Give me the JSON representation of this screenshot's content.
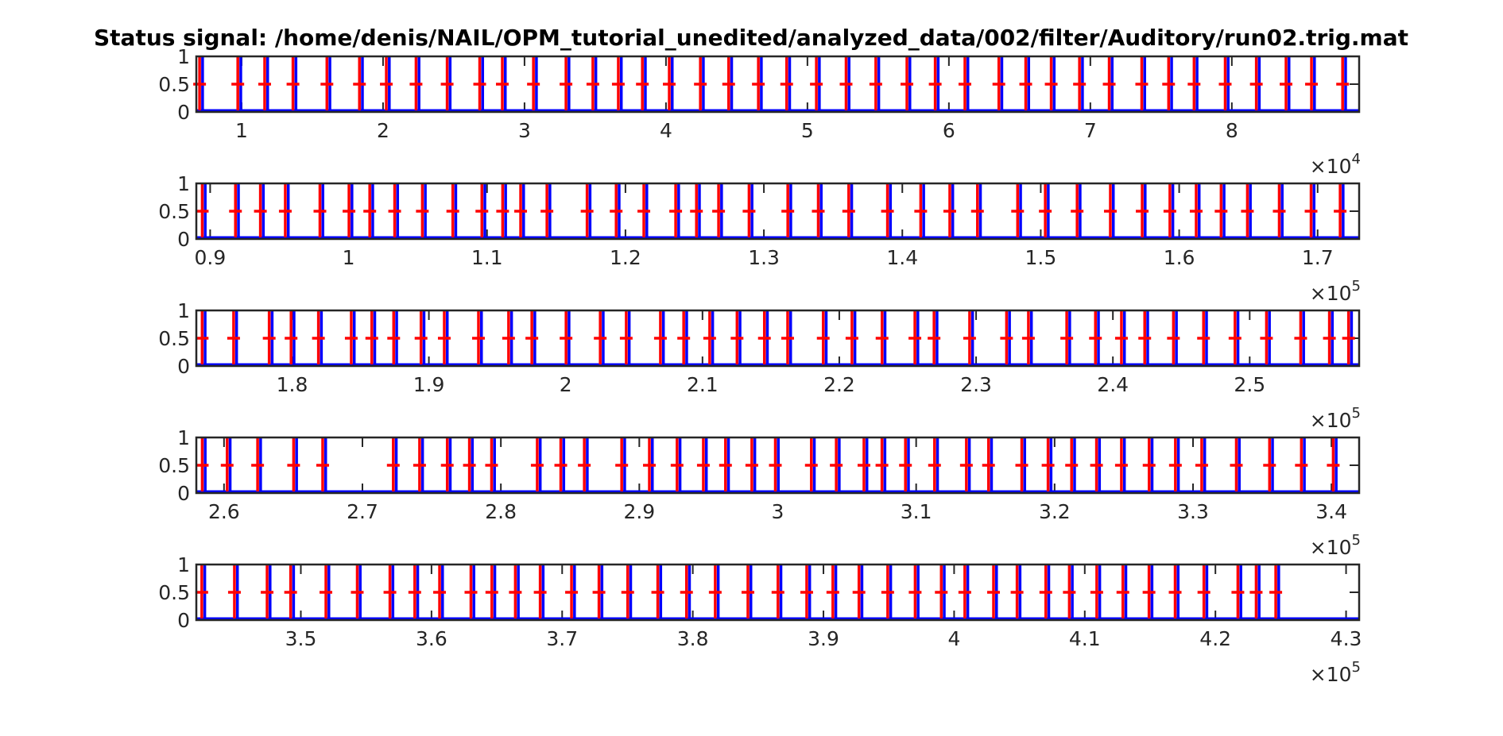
{
  "title": "Status signal: /home/denis/NAIL/OPM_tutorial_unedited/analyzed_data/002/filter/Auditory/run02.trig.mat",
  "chart_data": {
    "type": "line",
    "title": "Status signal: /home/denis/NAIL/OPM_tutorial_unedited/analyzed_data/002/filter/Auditory/run02.trig.mat",
    "xlabel": "",
    "ylabel": "",
    "grid": false,
    "colors": {
      "signal": "#0000ff",
      "trigger_markers": "#ff0000",
      "axes": "#262626"
    },
    "series": [
      {
        "name": "",
        "color": "#0000ff",
        "description_values": "status pulses 0 to 1"
      },
      {
        "name": "",
        "color": "#ff0000",
        "marker": "+"
      }
    ],
    "panels": [
      {
        "xlim": [
          6800,
          89000
        ],
        "ylim": [
          0,
          1
        ],
        "exponent_label": "×10",
        "exponent": "4",
        "yticks": [
          0,
          0.5,
          1
        ],
        "ytick_labels": [
          "0",
          "0.5",
          "1"
        ],
        "xticks": [
          10000,
          20000,
          30000,
          40000,
          50000,
          60000,
          70000,
          80000
        ],
        "xtick_labels": [
          "1",
          "2",
          "3",
          "4",
          "5",
          "6",
          "7",
          "8"
        ],
        "events": [
          7200,
          9900,
          11800,
          13800,
          16200,
          18500,
          20400,
          22500,
          24700,
          27000,
          28600,
          30800,
          33100,
          35000,
          36800,
          38500,
          40400,
          42600,
          44600,
          46700,
          48700,
          50800,
          52900,
          55000,
          57200,
          59200,
          61300,
          63700,
          65600,
          67400,
          69400,
          71500,
          73800,
          75700,
          77500,
          79700,
          81900,
          84000,
          85800,
          88000
        ]
      },
      {
        "xlim": [
          89000,
          173000
        ],
        "ylim": [
          0,
          1
        ],
        "exponent_label": "×10",
        "exponent": "5",
        "yticks": [
          0,
          0.5,
          1
        ],
        "ytick_labels": [
          "0",
          "0.5",
          "1"
        ],
        "xticks": [
          90000,
          100000,
          110000,
          120000,
          130000,
          140000,
          150000,
          160000,
          170000
        ],
        "xtick_labels": [
          "0.9",
          "1",
          "1.1",
          "1.2",
          "1.3",
          "1.4",
          "1.5",
          "1.6",
          "1.7"
        ],
        "events": [
          89600,
          92000,
          93800,
          95600,
          98100,
          100200,
          101700,
          103500,
          105500,
          107700,
          109800,
          111300,
          112600,
          114500,
          117400,
          119500,
          121500,
          123800,
          125300,
          126900,
          129100,
          131900,
          134100,
          136300,
          139100,
          141500,
          143600,
          145600,
          148500,
          150500,
          152800,
          155200,
          157500,
          159500,
          161400,
          163200,
          165100,
          167400,
          169700,
          171800
        ]
      },
      {
        "xlim": [
          173000,
          258000
        ],
        "ylim": [
          0,
          1
        ],
        "exponent_label": "×10",
        "exponent": "5",
        "yticks": [
          0,
          0.5,
          1
        ],
        "ytick_labels": [
          "0",
          "0.5",
          "1"
        ],
        "xticks": [
          180000,
          190000,
          200000,
          210000,
          220000,
          230000,
          240000,
          250000
        ],
        "xtick_labels": [
          "1.8",
          "1.9",
          "2",
          "2.1",
          "2.2",
          "2.3",
          "2.4",
          "2.5"
        ],
        "events": [
          173600,
          175900,
          178500,
          180100,
          182100,
          184500,
          186000,
          187600,
          189600,
          191300,
          193800,
          196000,
          197700,
          200200,
          202700,
          204600,
          207100,
          208800,
          210700,
          212700,
          214700,
          216400,
          219000,
          221100,
          223300,
          225700,
          227100,
          229700,
          232400,
          234000,
          236800,
          238900,
          240800,
          242500,
          244600,
          246800,
          249100,
          251400,
          253900,
          256000,
          257400
        ]
      },
      {
        "xlim": [
          258000,
          342000
        ],
        "ylim": [
          0,
          1
        ],
        "exponent_label": "×10",
        "exponent": "5",
        "yticks": [
          0,
          0.5,
          1
        ],
        "ytick_labels": [
          "0",
          "0.5",
          "1"
        ],
        "xticks": [
          260000,
          270000,
          280000,
          290000,
          300000,
          310000,
          320000,
          330000,
          340000
        ],
        "xtick_labels": [
          "2.6",
          "2.7",
          "2.8",
          "2.9",
          "3",
          "3.1",
          "3.2",
          "3.3",
          "3.4"
        ],
        "events": [
          258600,
          260400,
          262600,
          265200,
          267300,
          272400,
          274300,
          276300,
          277900,
          279500,
          282800,
          284500,
          286200,
          288900,
          290900,
          292900,
          294800,
          296400,
          298300,
          300000,
          302600,
          304400,
          306400,
          307700,
          309400,
          311500,
          313800,
          315400,
          317800,
          319700,
          321400,
          323200,
          325000,
          327000,
          328900,
          330800,
          333300,
          335700,
          338000,
          340300
        ]
      },
      {
        "xlim": [
          342000,
          431000
        ],
        "ylim": [
          0,
          1
        ],
        "exponent_label": "×10",
        "exponent": "5",
        "yticks": [
          0,
          0.5,
          1
        ],
        "ytick_labels": [
          "0",
          "0.5",
          "1"
        ],
        "xticks": [
          350000,
          360000,
          370000,
          380000,
          390000,
          400000,
          410000,
          420000,
          430000
        ],
        "xtick_labels": [
          "3.5",
          "3.6",
          "3.7",
          "3.8",
          "3.9",
          "4",
          "4.1",
          "4.2",
          "4.3"
        ],
        "events": [
          342600,
          345100,
          347600,
          349400,
          352100,
          354500,
          357000,
          358900,
          360800,
          363200,
          364800,
          366600,
          368500,
          370900,
          373000,
          375200,
          377500,
          379700,
          381900,
          384400,
          386700,
          388900,
          390900,
          392900,
          395100,
          397200,
          399200,
          401000,
          403200,
          405000,
          407200,
          409000,
          411100,
          413100,
          415100,
          417100,
          419300,
          421900,
          423300,
          424800
        ]
      }
    ]
  }
}
